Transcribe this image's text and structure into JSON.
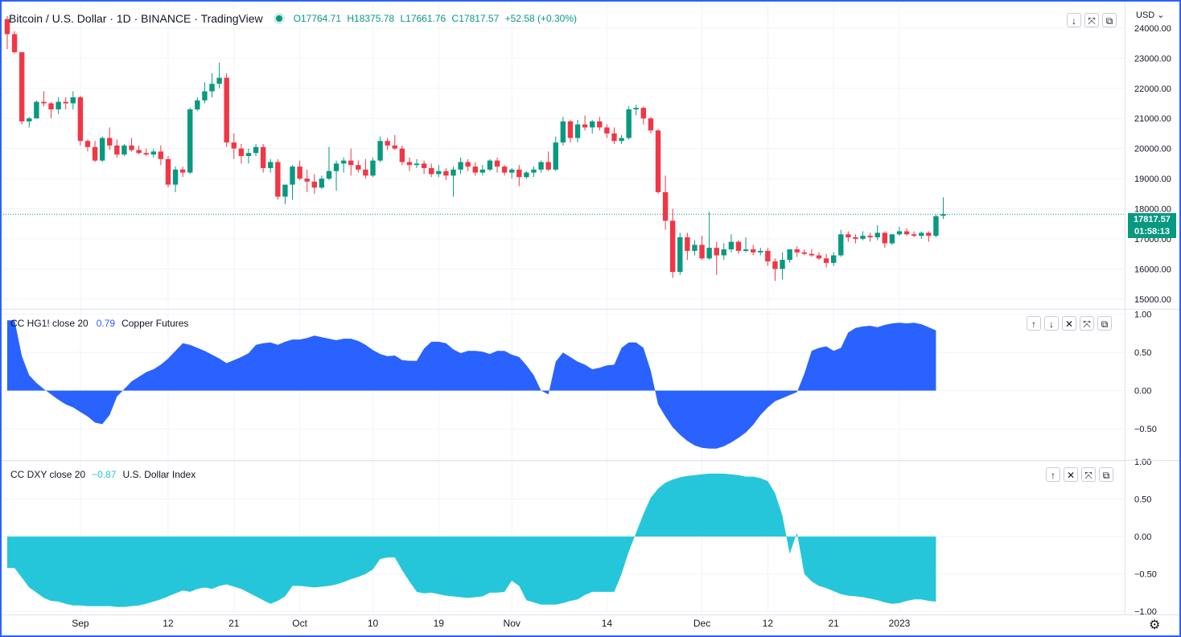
{
  "header": {
    "symbol_title": "Bitcoin / U.S. Dollar · 1D · BINANCE · TradingView",
    "open_label": "O",
    "open": "17764.71",
    "high_label": "H",
    "high": "18375.78",
    "low_label": "L",
    "low": "17661.76",
    "close_label": "C",
    "close": "17817.57",
    "change": "+52.58 (+0.30%)",
    "currency": "USD"
  },
  "price_box": {
    "price": "17817.57",
    "countdown": "01:58:13",
    "color": "#089981"
  },
  "indicators": [
    {
      "label": "CC HG1! close 20",
      "value": "0.79",
      "name": "Copper Futures",
      "color": "#2962ff"
    },
    {
      "label": "CC DXY close 20",
      "value": "−0.87",
      "name": "U.S. Dollar Index",
      "color": "#26c6da"
    }
  ],
  "x_tick_labels": [
    "Sep",
    "12",
    "21",
    "Oct",
    "10",
    "19",
    "Nov",
    "14",
    "Dec",
    "12",
    "21",
    "2023"
  ],
  "colors": {
    "up": "#089981",
    "down": "#f23645",
    "copper": "#2962ff",
    "dxy": "#26c6da",
    "grid": "#f0f3fa"
  },
  "chart_data": [
    {
      "type": "candlestick",
      "title": "Bitcoin / U.S. Dollar · 1D · BINANCE",
      "x_start": "2022-08-22",
      "yticks": [
        "15000.00",
        "16000.00",
        "17000.00",
        "18000.00",
        "19000.00",
        "20000.00",
        "21000.00",
        "22000.00",
        "23000.00",
        "24000.00"
      ],
      "ylim": [
        14700,
        24800
      ],
      "candles": [
        [
          24300,
          24400,
          23300,
          23800
        ],
        [
          23800,
          23900,
          23150,
          23200
        ],
        [
          23200,
          23200,
          20800,
          20900
        ],
        [
          20900,
          21050,
          20700,
          21000
        ],
        [
          21000,
          21600,
          21000,
          21550
        ],
        [
          21550,
          21900,
          21400,
          21500
        ],
        [
          21500,
          21550,
          21000,
          21300
        ],
        [
          21300,
          21700,
          21150,
          21550
        ],
        [
          21550,
          21700,
          21300,
          21500
        ],
        [
          21500,
          21900,
          21300,
          21700
        ],
        [
          21700,
          21750,
          20100,
          20250
        ],
        [
          20250,
          20300,
          19900,
          20050
        ],
        [
          20050,
          20250,
          19550,
          19600
        ],
        [
          19600,
          20400,
          19550,
          20350
        ],
        [
          20350,
          20700,
          19950,
          20100
        ],
        [
          20100,
          20300,
          19700,
          19800
        ],
        [
          19800,
          20150,
          19750,
          20100
        ],
        [
          20100,
          20350,
          19900,
          19950
        ],
        [
          19950,
          20100,
          19800,
          19850
        ],
        [
          19850,
          20000,
          19750,
          19800
        ],
        [
          19800,
          20000,
          19700,
          19900
        ],
        [
          19900,
          20100,
          19450,
          19650
        ],
        [
          19650,
          19750,
          18700,
          18800
        ],
        [
          18800,
          19400,
          18550,
          19300
        ],
        [
          19300,
          19400,
          19050,
          19200
        ],
        [
          19200,
          21350,
          19150,
          21300
        ],
        [
          21300,
          21700,
          21250,
          21600
        ],
        [
          21600,
          22200,
          21500,
          21900
        ],
        [
          21900,
          22500,
          21700,
          22150
        ],
        [
          22150,
          22850,
          22000,
          22350
        ],
        [
          22350,
          22500,
          20050,
          20200
        ],
        [
          20200,
          20500,
          19650,
          20000
        ],
        [
          20000,
          20150,
          19500,
          19750
        ],
        [
          19750,
          20000,
          19500,
          19850
        ],
        [
          19850,
          20150,
          19750,
          20050
        ],
        [
          20050,
          20150,
          19200,
          19350
        ],
        [
          19350,
          19650,
          19200,
          19550
        ],
        [
          19550,
          19650,
          18300,
          18400
        ],
        [
          18400,
          18750,
          18150,
          18800
        ],
        [
          18800,
          19450,
          18300,
          19400
        ],
        [
          19400,
          19600,
          18950,
          19000
        ],
        [
          19000,
          19300,
          18550,
          18900
        ],
        [
          18900,
          19150,
          18500,
          18700
        ],
        [
          18700,
          19100,
          18650,
          19000
        ],
        [
          19000,
          20050,
          18950,
          19250
        ],
        [
          19250,
          19600,
          18600,
          19500
        ],
        [
          19500,
          19700,
          19200,
          19600
        ],
        [
          19600,
          20000,
          19100,
          19450
        ],
        [
          19450,
          19600,
          19200,
          19300
        ],
        [
          19300,
          19650,
          19000,
          19100
        ],
        [
          19100,
          19700,
          19050,
          19600
        ],
        [
          19600,
          20400,
          19550,
          20250
        ],
        [
          20250,
          20350,
          19950,
          20100
        ],
        [
          20100,
          20450,
          19950,
          20000
        ],
        [
          20000,
          20100,
          19450,
          19550
        ],
        [
          19550,
          19700,
          19250,
          19450
        ],
        [
          19450,
          19650,
          19350,
          19500
        ],
        [
          19500,
          19600,
          19150,
          19350
        ],
        [
          19350,
          19500,
          19050,
          19150
        ],
        [
          19150,
          19450,
          19050,
          19250
        ],
        [
          19250,
          19350,
          18950,
          19100
        ],
        [
          19100,
          19400,
          18400,
          19300
        ],
        [
          19300,
          19700,
          19150,
          19550
        ],
        [
          19550,
          19650,
          19250,
          19400
        ],
        [
          19400,
          19550,
          19100,
          19200
        ],
        [
          19200,
          19450,
          19100,
          19300
        ],
        [
          19300,
          19650,
          19250,
          19600
        ],
        [
          19600,
          19700,
          19200,
          19400
        ],
        [
          19400,
          19450,
          19100,
          19200
        ],
        [
          19200,
          19350,
          19000,
          19300
        ],
        [
          19300,
          19450,
          18750,
          19050
        ],
        [
          19050,
          19250,
          19000,
          19200
        ],
        [
          19200,
          19400,
          19050,
          19300
        ],
        [
          19300,
          19600,
          19200,
          19550
        ],
        [
          19550,
          19900,
          19250,
          19300
        ],
        [
          19300,
          20400,
          19250,
          20200
        ],
        [
          20200,
          21050,
          20100,
          20900
        ],
        [
          20900,
          20950,
          20200,
          20350
        ],
        [
          20350,
          20950,
          20200,
          20800
        ],
        [
          20800,
          21100,
          20600,
          20700
        ],
        [
          20700,
          20950,
          20500,
          20900
        ],
        [
          20900,
          21050,
          20600,
          20700
        ],
        [
          20700,
          20800,
          20350,
          20500
        ],
        [
          20500,
          20700,
          20150,
          20250
        ],
        [
          20250,
          20450,
          20150,
          20350
        ],
        [
          20350,
          21400,
          20300,
          21300
        ],
        [
          21300,
          21450,
          21100,
          21350
        ],
        [
          21350,
          21400,
          20800,
          21000
        ],
        [
          21000,
          21050,
          20500,
          20600
        ],
        [
          20600,
          20650,
          18500,
          18550
        ],
        [
          18550,
          19100,
          17300,
          17600
        ],
        [
          17600,
          18000,
          15700,
          15900
        ],
        [
          15900,
          17200,
          15800,
          17050
        ],
        [
          17050,
          17200,
          16300,
          16600
        ],
        [
          16600,
          16950,
          16450,
          16800
        ],
        [
          16800,
          17100,
          16300,
          16350
        ],
        [
          16350,
          17900,
          16300,
          16700
        ],
        [
          16700,
          16900,
          15800,
          16450
        ],
        [
          16450,
          16850,
          16300,
          16650
        ],
        [
          16650,
          17150,
          16550,
          16900
        ],
        [
          16900,
          16950,
          16500,
          16600
        ],
        [
          16600,
          17050,
          16550,
          16650
        ],
        [
          16650,
          16800,
          16450,
          16550
        ],
        [
          16550,
          16700,
          16450,
          16600
        ],
        [
          16600,
          16700,
          16100,
          16250
        ],
        [
          16250,
          16350,
          15600,
          16000
        ],
        [
          16000,
          16550,
          15650,
          16300
        ],
        [
          16300,
          16650,
          16200,
          16650
        ],
        [
          16650,
          16750,
          16400,
          16550
        ],
        [
          16550,
          16650,
          16450,
          16500
        ],
        [
          16500,
          16650,
          16400,
          16450
        ],
        [
          16450,
          16550,
          16300,
          16350
        ],
        [
          16350,
          16500,
          16050,
          16200
        ],
        [
          16200,
          16550,
          16100,
          16450
        ],
        [
          16450,
          17300,
          16400,
          17150
        ],
        [
          17150,
          17250,
          16900,
          17050
        ],
        [
          17050,
          17150,
          16850,
          17000
        ],
        [
          17000,
          17250,
          16950,
          17100
        ],
        [
          17100,
          17200,
          16900,
          17050
        ],
        [
          17050,
          17450,
          16950,
          17200
        ],
        [
          17200,
          17250,
          16700,
          16850
        ],
        [
          16850,
          17150,
          16800,
          17150
        ],
        [
          17150,
          17400,
          17100,
          17250
        ],
        [
          17250,
          17350,
          17100,
          17150
        ],
        [
          17150,
          17250,
          17050,
          17100
        ],
        [
          17100,
          17250,
          17000,
          17200
        ],
        [
          17200,
          17250,
          16900,
          17100
        ],
        [
          17100,
          17800,
          17050,
          17750
        ],
        [
          17764.71,
          18375.78,
          17661.76,
          17817.57
        ]
      ]
    },
    {
      "type": "area",
      "title": "CC HG1! close 20",
      "yticks": [
        "1.00",
        "0.50",
        "0.00",
        "−0.50"
      ],
      "ylim": [
        -0.9,
        1.05
      ],
      "values": [
        0.92,
        0.92,
        0.45,
        0.2,
        0.1,
        0.02,
        -0.05,
        -0.12,
        -0.18,
        -0.22,
        -0.28,
        -0.34,
        -0.42,
        -0.44,
        -0.32,
        -0.08,
        0.02,
        0.12,
        0.18,
        0.24,
        0.28,
        0.34,
        0.42,
        0.52,
        0.62,
        0.6,
        0.56,
        0.52,
        0.47,
        0.42,
        0.36,
        0.4,
        0.44,
        0.49,
        0.6,
        0.62,
        0.63,
        0.6,
        0.64,
        0.67,
        0.67,
        0.69,
        0.72,
        0.7,
        0.68,
        0.66,
        0.68,
        0.68,
        0.65,
        0.6,
        0.53,
        0.48,
        0.45,
        0.46,
        0.4,
        0.39,
        0.39,
        0.55,
        0.64,
        0.64,
        0.62,
        0.54,
        0.49,
        0.52,
        0.52,
        0.51,
        0.48,
        0.52,
        0.52,
        0.47,
        0.44,
        0.33,
        0.2,
        0.0,
        -0.05,
        0.38,
        0.5,
        0.44,
        0.38,
        0.34,
        0.28,
        0.3,
        0.33,
        0.34,
        0.56,
        0.63,
        0.63,
        0.56,
        0.26,
        -0.18,
        -0.34,
        -0.48,
        -0.58,
        -0.66,
        -0.72,
        -0.75,
        -0.76,
        -0.76,
        -0.73,
        -0.68,
        -0.62,
        -0.55,
        -0.45,
        -0.32,
        -0.22,
        -0.14,
        -0.1,
        -0.06,
        -0.02,
        0.22,
        0.52,
        0.56,
        0.58,
        0.52,
        0.56,
        0.76,
        0.82,
        0.84,
        0.85,
        0.83,
        0.86,
        0.88,
        0.89,
        0.88,
        0.89,
        0.87,
        0.83,
        0.79
      ]
    },
    {
      "type": "area",
      "title": "CC DXY close 20",
      "yticks": [
        "1.00",
        "0.50",
        "0.00",
        "−0.50",
        "−1.00"
      ],
      "ylim": [
        -1.02,
        1.0
      ],
      "values": [
        -0.42,
        -0.42,
        -0.55,
        -0.68,
        -0.75,
        -0.82,
        -0.86,
        -0.87,
        -0.9,
        -0.92,
        -0.92,
        -0.93,
        -0.93,
        -0.93,
        -0.93,
        -0.94,
        -0.94,
        -0.93,
        -0.92,
        -0.9,
        -0.87,
        -0.84,
        -0.8,
        -0.76,
        -0.72,
        -0.74,
        -0.7,
        -0.68,
        -0.7,
        -0.66,
        -0.64,
        -0.67,
        -0.7,
        -0.75,
        -0.8,
        -0.85,
        -0.9,
        -0.86,
        -0.8,
        -0.66,
        -0.66,
        -0.67,
        -0.68,
        -0.67,
        -0.66,
        -0.64,
        -0.61,
        -0.57,
        -0.54,
        -0.5,
        -0.44,
        -0.3,
        -0.28,
        -0.28,
        -0.45,
        -0.6,
        -0.74,
        -0.76,
        -0.75,
        -0.77,
        -0.79,
        -0.8,
        -0.81,
        -0.82,
        -0.81,
        -0.8,
        -0.75,
        -0.75,
        -0.74,
        -0.59,
        -0.66,
        -0.85,
        -0.88,
        -0.91,
        -0.91,
        -0.91,
        -0.89,
        -0.86,
        -0.84,
        -0.78,
        -0.74,
        -0.74,
        -0.74,
        -0.74,
        -0.5,
        -0.2,
        0.05,
        0.3,
        0.52,
        0.64,
        0.72,
        0.76,
        0.79,
        0.81,
        0.82,
        0.83,
        0.84,
        0.84,
        0.84,
        0.83,
        0.82,
        0.8,
        0.8,
        0.78,
        0.74,
        0.58,
        0.28,
        -0.23,
        0.05,
        -0.5,
        -0.6,
        -0.66,
        -0.69,
        -0.73,
        -0.77,
        -0.79,
        -0.8,
        -0.81,
        -0.83,
        -0.85,
        -0.88,
        -0.9,
        -0.89,
        -0.86,
        -0.84,
        -0.84,
        -0.86,
        -0.87
      ]
    }
  ]
}
